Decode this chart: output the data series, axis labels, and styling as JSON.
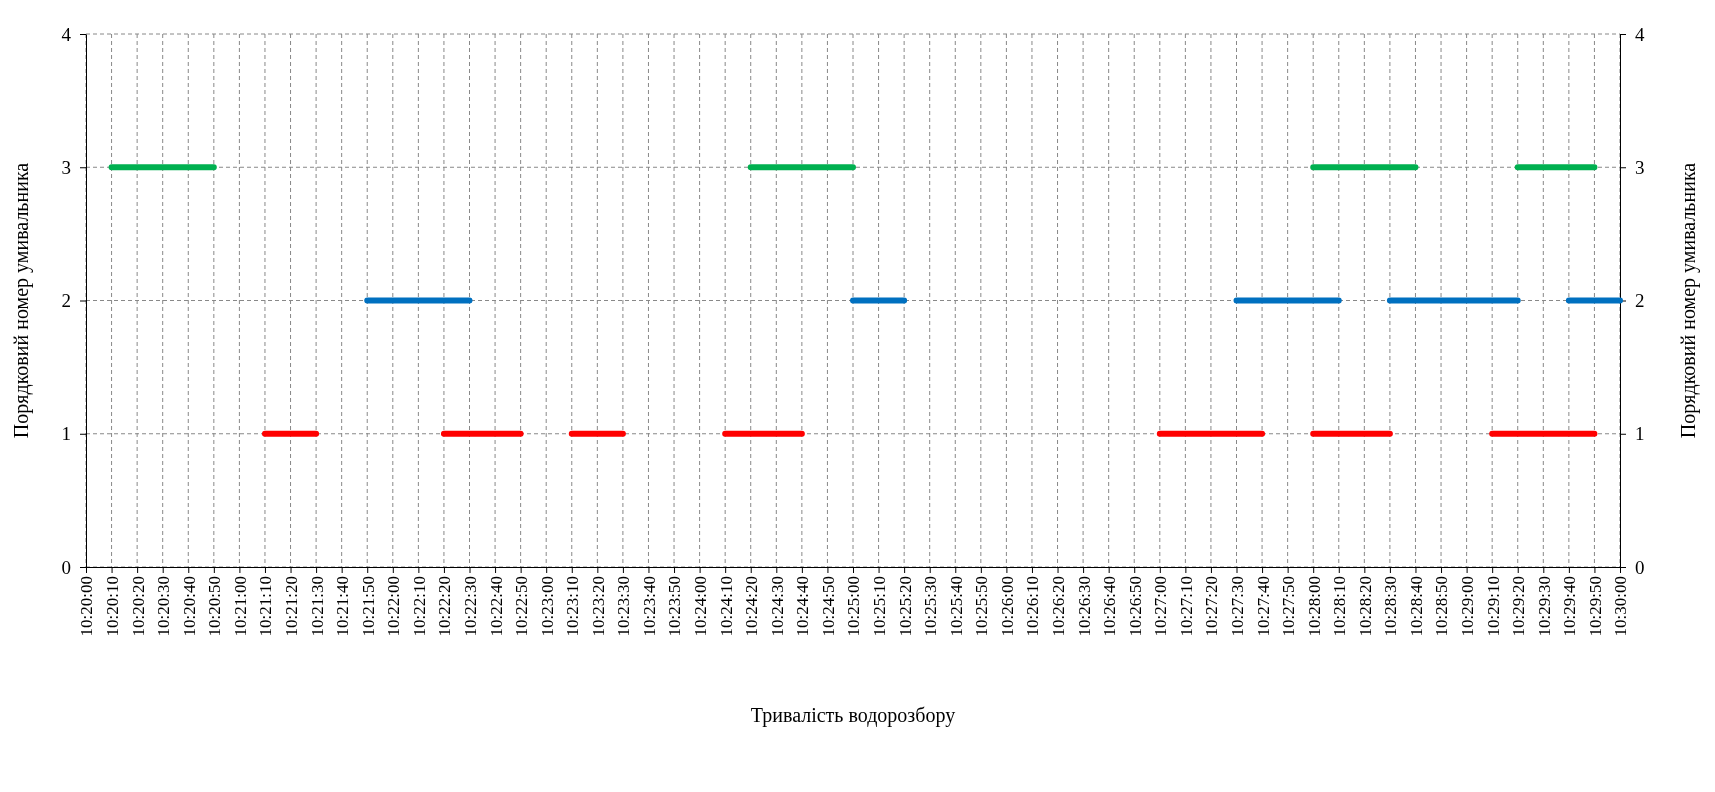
{
  "chart_data": {
    "type": "line",
    "xlabel": "Тривалість водорозбору",
    "ylabel": "Порядковий номер умивальника",
    "y2label": "Порядковий номер умивальника",
    "categories": [
      "10:20:00",
      "10:20:10",
      "10:20:20",
      "10:20:30",
      "10:20:40",
      "10:20:50",
      "10:21:00",
      "10:21:10",
      "10:21:20",
      "10:21:30",
      "10:21:40",
      "10:21:50",
      "10:22:00",
      "10:22:10",
      "10:22:20",
      "10:22:30",
      "10:22:40",
      "10:22:50",
      "10:23:00",
      "10:23:10",
      "10:23:20",
      "10:23:30",
      "10:23:40",
      "10:23:50",
      "10:24:00",
      "10:24:10",
      "10:24:20",
      "10:24:30",
      "10:24:40",
      "10:24:50",
      "10:25:00",
      "10:25:10",
      "10:25:20",
      "10:25:30",
      "10:25:40",
      "10:25:50",
      "10:26:00",
      "10:26:10",
      "10:26:20",
      "10:26:30",
      "10:26:40",
      "10:26:50",
      "10:27:00",
      "10:27:10",
      "10:27:20",
      "10:27:30",
      "10:27:40",
      "10:27:50",
      "10:28:00",
      "10:28:10",
      "10:28:20",
      "10:28:30",
      "10:28:40",
      "10:28:50",
      "10:29:00",
      "10:29:10",
      "10:29:20",
      "10:29:30",
      "10:29:40",
      "10:29:50",
      "10:30:00"
    ],
    "series": [
      {
        "color": "#00b050",
        "values": [
          null,
          3,
          3,
          3,
          3,
          3,
          null,
          null,
          null,
          null,
          null,
          null,
          null,
          null,
          null,
          null,
          null,
          null,
          null,
          null,
          null,
          null,
          null,
          null,
          null,
          null,
          3,
          3,
          3,
          3,
          3,
          null,
          null,
          null,
          null,
          null,
          null,
          null,
          null,
          null,
          null,
          null,
          null,
          null,
          null,
          null,
          null,
          null,
          3,
          3,
          3,
          3,
          3,
          null,
          null,
          null,
          3,
          3,
          3,
          3,
          null
        ]
      },
      {
        "color": "#0070c0",
        "values": [
          null,
          null,
          null,
          null,
          null,
          null,
          null,
          null,
          null,
          null,
          null,
          2,
          2,
          2,
          2,
          2,
          null,
          null,
          null,
          null,
          null,
          null,
          null,
          null,
          null,
          null,
          null,
          null,
          null,
          null,
          2,
          2,
          2,
          null,
          null,
          null,
          null,
          null,
          null,
          null,
          null,
          null,
          null,
          null,
          null,
          2,
          2,
          2,
          2,
          2,
          null,
          2,
          2,
          2,
          2,
          2,
          2,
          null,
          2,
          2,
          2
        ]
      },
      {
        "color": "#ff0000",
        "values": [
          null,
          null,
          null,
          null,
          null,
          null,
          null,
          1,
          1,
          1,
          null,
          null,
          null,
          null,
          1,
          1,
          1,
          1,
          null,
          1,
          1,
          1,
          null,
          null,
          null,
          1,
          1,
          1,
          1,
          null,
          null,
          null,
          null,
          null,
          null,
          null,
          null,
          null,
          null,
          null,
          null,
          null,
          1,
          1,
          1,
          1,
          1,
          null,
          1,
          1,
          1,
          1,
          null,
          null,
          null,
          1,
          1,
          1,
          1,
          1,
          null
        ]
      }
    ],
    "ylim": [
      0,
      4
    ],
    "yticks": [
      0,
      1,
      2,
      3,
      4
    ],
    "y2lim": [
      0,
      4
    ],
    "y2ticks": [
      0,
      1,
      2,
      3,
      4
    ],
    "grid": true,
    "line_style": "solid",
    "marker": "none"
  }
}
